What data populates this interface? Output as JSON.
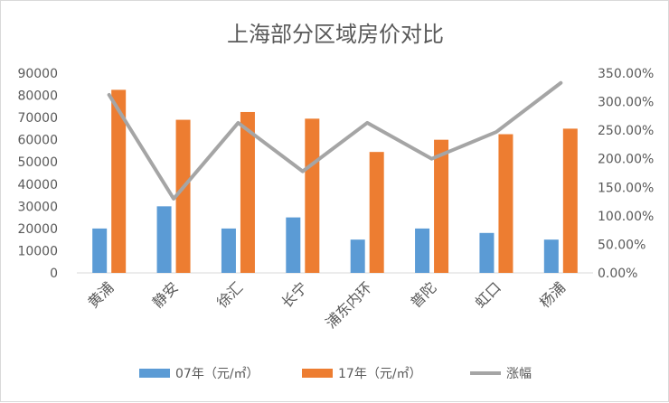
{
  "chart_data": {
    "type": "bar",
    "title": "上海部分区域房价对比",
    "categories": [
      "黄浦",
      "静安",
      "徐汇",
      "长宁",
      "浦东内环",
      "普陀",
      "虹口",
      "杨浦"
    ],
    "series": [
      {
        "name": "07年（元/㎡）",
        "kind": "bar",
        "axis": "left",
        "color": "#5b9bd5",
        "values": [
          20000,
          30000,
          20000,
          25000,
          15000,
          20000,
          18000,
          15000
        ]
      },
      {
        "name": "17年（元/㎡）",
        "kind": "bar",
        "axis": "left",
        "color": "#ed7d31",
        "values": [
          82500,
          69000,
          72500,
          69500,
          54500,
          60000,
          62500,
          65000
        ]
      },
      {
        "name": "涨幅",
        "kind": "line",
        "axis": "right",
        "color": "#a5a5a5",
        "values": [
          3.12,
          1.3,
          2.63,
          1.78,
          2.63,
          2.0,
          2.47,
          3.33
        ]
      }
    ],
    "y_left": {
      "min": 0,
      "max": 90000,
      "ticks": [
        "90000",
        "80000",
        "70000",
        "60000",
        "50000",
        "40000",
        "30000",
        "20000",
        "10000",
        "0"
      ]
    },
    "y_right": {
      "min": 0,
      "max": 3.5,
      "ticks": [
        "350.00%",
        "300.00%",
        "250.00%",
        "200.00%",
        "150.00%",
        "100.00%",
        "50.00%",
        "0.00%"
      ]
    },
    "grid": false,
    "legend": "bottom"
  }
}
